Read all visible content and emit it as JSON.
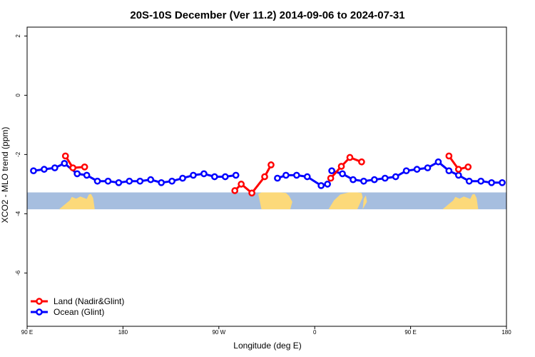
{
  "chart_data": {
    "type": "line",
    "title": "20S-10S December (Ver 11.2)   2014-09-06 to 2024-07-31",
    "xlabel": "Longitude (deg E)",
    "ylabel": "XCO2 - MLO trend (ppm)",
    "xlim": [
      90,
      540
    ],
    "ylim": [
      -7.8,
      2.3
    ],
    "x_ticks": [
      {
        "value": 90,
        "label": "90 E"
      },
      {
        "value": 180,
        "label": "180"
      },
      {
        "value": 270,
        "label": "90 W"
      },
      {
        "value": 360,
        "label": "0"
      },
      {
        "value": 450,
        "label": "90 E"
      },
      {
        "value": 540,
        "label": "180"
      }
    ],
    "y_ticks": [
      {
        "value": 2,
        "label": "2"
      },
      {
        "value": 0,
        "label": "0"
      },
      {
        "value": -2,
        "label": "-2"
      },
      {
        "value": -4,
        "label": "-4"
      },
      {
        "value": -6,
        "label": "-6"
      }
    ],
    "land_band": {
      "y_top": -3.28,
      "y_bottom": -3.85,
      "ocean_color": "#a6bedf",
      "land_color": "#fcd97a"
    },
    "land_masses": [
      {
        "name": "australia",
        "x": [
          125,
          130,
          132,
          136,
          140,
          146,
          148,
          150,
          152,
          153.5,
          148,
          142,
          135,
          126,
          120
        ],
        "y": [
          -3.7,
          -3.55,
          -3.43,
          -3.49,
          -3.42,
          -3.5,
          -3.35,
          -3.33,
          -3.47,
          -3.85,
          -3.85,
          -3.85,
          -3.85,
          -3.85,
          -3.85
        ]
      },
      {
        "name": "south-america-west",
        "x": [
          307,
          310,
          314,
          319,
          323,
          328,
          333,
          336,
          339,
          337,
          333,
          320,
          310
        ],
        "y": [
          -3.33,
          -3.28,
          -3.28,
          -3.28,
          -3.28,
          -3.28,
          -3.3,
          -3.4,
          -3.6,
          -3.85,
          -3.85,
          -3.85,
          -3.85
        ]
      },
      {
        "name": "africa",
        "x": [
          373,
          378,
          384,
          392,
          400,
          404,
          405,
          400,
          392,
          380,
          373
        ],
        "y": [
          -3.85,
          -3.55,
          -3.35,
          -3.28,
          -3.28,
          -3.3,
          -3.45,
          -3.85,
          -3.85,
          -3.85,
          -3.85
        ]
      },
      {
        "name": "madagascar",
        "x": [
          406,
          408,
          409,
          405
        ],
        "y": [
          -3.5,
          -3.38,
          -3.6,
          -3.85
        ]
      },
      {
        "name": "australia-repeat",
        "x": [
          485,
          490,
          492,
          496,
          500,
          506,
          508,
          510,
          512,
          513.5,
          508,
          502,
          495,
          486,
          480
        ],
        "y": [
          -3.7,
          -3.55,
          -3.43,
          -3.49,
          -3.42,
          -3.5,
          -3.35,
          -3.33,
          -3.47,
          -3.85,
          -3.85,
          -3.85,
          -3.85,
          -3.85,
          -3.85
        ]
      }
    ],
    "series": [
      {
        "name": "Land (Nadir&Glint)",
        "color": "#ff0000",
        "segments": [
          {
            "x": [
              126,
              133,
              144
            ],
            "y": [
              -2.05,
              -2.45,
              -2.42
            ]
          },
          {
            "x": [
              285,
              291,
              301,
              313,
              319
            ],
            "y": [
              -3.22,
              -3.0,
              -3.3,
              -2.75,
              -2.35
            ]
          },
          {
            "x": [
              375,
              385,
              393,
              404
            ],
            "y": [
              -2.8,
              -2.4,
              -2.1,
              -2.25
            ]
          },
          {
            "x": [
              486,
              495,
              504
            ],
            "y": [
              -2.05,
              -2.5,
              -2.42
            ]
          }
        ]
      },
      {
        "name": "Ocean (Glint)",
        "color": "#0000ff",
        "segments": [
          {
            "x": [
              96,
              106,
              116,
              125,
              137,
              146,
              156,
              166,
              176,
              186,
              196,
              206,
              216,
              226,
              236,
              246,
              256,
              266,
              276,
              286
            ],
            "y": [
              -2.55,
              -2.5,
              -2.45,
              -2.3,
              -2.65,
              -2.7,
              -2.9,
              -2.9,
              -2.95,
              -2.9,
              -2.9,
              -2.85,
              -2.95,
              -2.9,
              -2.8,
              -2.7,
              -2.65,
              -2.75,
              -2.75,
              -2.7
            ]
          },
          {
            "x": [
              325,
              333,
              343,
              353,
              366,
              372
            ],
            "y": [
              -2.8,
              -2.7,
              -2.7,
              -2.75,
              -3.05,
              -3.0
            ]
          },
          {
            "x": [
              376,
              386,
              396,
              406,
              416,
              426,
              436,
              446,
              456,
              466,
              476,
              486,
              495,
              505,
              516,
              526,
              536
            ],
            "y": [
              -2.55,
              -2.65,
              -2.85,
              -2.9,
              -2.85,
              -2.8,
              -2.75,
              -2.55,
              -2.5,
              -2.45,
              -2.25,
              -2.55,
              -2.7,
              -2.9,
              -2.9,
              -2.95,
              -2.95
            ]
          }
        ]
      }
    ],
    "grid": false,
    "legend_position": "bottom-left"
  }
}
